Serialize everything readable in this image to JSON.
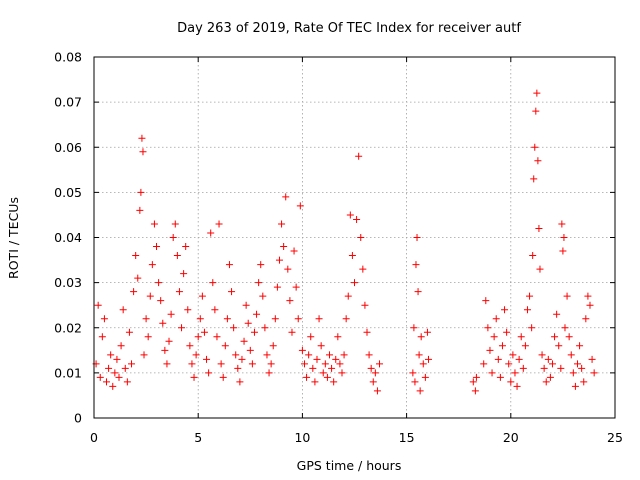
{
  "chart_data": {
    "type": "scatter",
    "title": "Day 263 of 2019, Rate Of TEC Index for receiver autf",
    "xlabel": "GPS time / hours",
    "ylabel": "ROTI / TECUs",
    "xlim": [
      0,
      25
    ],
    "ylim": [
      0,
      0.08
    ],
    "x_ticks": [
      "0",
      "5",
      "10",
      "15",
      "20",
      "25"
    ],
    "y_ticks": [
      "0",
      "0.01",
      "0.02",
      "0.03",
      "0.04",
      "0.05",
      "0.06",
      "0.07",
      "0.08"
    ],
    "grid": true,
    "marker": "plus",
    "color": "#ff0000",
    "points": [
      [
        0.1,
        0.012
      ],
      [
        0.2,
        0.025
      ],
      [
        0.3,
        0.009
      ],
      [
        0.4,
        0.018
      ],
      [
        0.5,
        0.022
      ],
      [
        0.6,
        0.008
      ],
      [
        0.7,
        0.011
      ],
      [
        0.8,
        0.014
      ],
      [
        0.9,
        0.007
      ],
      [
        1.0,
        0.01
      ],
      [
        1.1,
        0.013
      ],
      [
        1.2,
        0.009
      ],
      [
        1.3,
        0.016
      ],
      [
        1.4,
        0.024
      ],
      [
        1.5,
        0.011
      ],
      [
        1.6,
        0.008
      ],
      [
        1.7,
        0.019
      ],
      [
        1.8,
        0.012
      ],
      [
        1.9,
        0.028
      ],
      [
        2.0,
        0.036
      ],
      [
        2.1,
        0.031
      ],
      [
        2.2,
        0.046
      ],
      [
        2.25,
        0.05
      ],
      [
        2.3,
        0.062
      ],
      [
        2.35,
        0.059
      ],
      [
        2.4,
        0.014
      ],
      [
        2.5,
        0.022
      ],
      [
        2.6,
        0.018
      ],
      [
        2.7,
        0.027
      ],
      [
        2.8,
        0.034
      ],
      [
        2.9,
        0.043
      ],
      [
        3.0,
        0.038
      ],
      [
        3.1,
        0.03
      ],
      [
        3.2,
        0.026
      ],
      [
        3.3,
        0.021
      ],
      [
        3.4,
        0.015
      ],
      [
        3.5,
        0.012
      ],
      [
        3.6,
        0.017
      ],
      [
        3.7,
        0.023
      ],
      [
        3.8,
        0.04
      ],
      [
        3.9,
        0.043
      ],
      [
        4.0,
        0.036
      ],
      [
        4.1,
        0.028
      ],
      [
        4.2,
        0.02
      ],
      [
        4.3,
        0.032
      ],
      [
        4.4,
        0.038
      ],
      [
        4.5,
        0.024
      ],
      [
        4.6,
        0.016
      ],
      [
        4.7,
        0.012
      ],
      [
        4.8,
        0.009
      ],
      [
        4.9,
        0.014
      ],
      [
        5.0,
        0.018
      ],
      [
        5.1,
        0.022
      ],
      [
        5.2,
        0.027
      ],
      [
        5.3,
        0.019
      ],
      [
        5.4,
        0.013
      ],
      [
        5.5,
        0.01
      ],
      [
        5.6,
        0.041
      ],
      [
        5.7,
        0.03
      ],
      [
        5.8,
        0.024
      ],
      [
        5.9,
        0.018
      ],
      [
        6.0,
        0.043
      ],
      [
        6.1,
        0.012
      ],
      [
        6.2,
        0.009
      ],
      [
        6.3,
        0.016
      ],
      [
        6.4,
        0.022
      ],
      [
        6.5,
        0.034
      ],
      [
        6.6,
        0.028
      ],
      [
        6.7,
        0.02
      ],
      [
        6.8,
        0.014
      ],
      [
        6.9,
        0.011
      ],
      [
        7.0,
        0.008
      ],
      [
        7.1,
        0.013
      ],
      [
        7.2,
        0.017
      ],
      [
        7.3,
        0.025
      ],
      [
        7.4,
        0.021
      ],
      [
        7.5,
        0.015
      ],
      [
        7.6,
        0.012
      ],
      [
        7.7,
        0.019
      ],
      [
        7.8,
        0.023
      ],
      [
        7.9,
        0.03
      ],
      [
        8.0,
        0.034
      ],
      [
        8.1,
        0.027
      ],
      [
        8.2,
        0.02
      ],
      [
        8.3,
        0.014
      ],
      [
        8.4,
        0.01
      ],
      [
        8.5,
        0.012
      ],
      [
        8.6,
        0.016
      ],
      [
        8.7,
        0.022
      ],
      [
        8.8,
        0.029
      ],
      [
        8.9,
        0.035
      ],
      [
        9.0,
        0.043
      ],
      [
        9.1,
        0.038
      ],
      [
        9.2,
        0.049
      ],
      [
        9.3,
        0.033
      ],
      [
        9.4,
        0.026
      ],
      [
        9.5,
        0.019
      ],
      [
        9.6,
        0.037
      ],
      [
        9.7,
        0.029
      ],
      [
        9.8,
        0.022
      ],
      [
        9.9,
        0.047
      ],
      [
        10.0,
        0.015
      ],
      [
        10.1,
        0.012
      ],
      [
        10.2,
        0.009
      ],
      [
        10.3,
        0.014
      ],
      [
        10.4,
        0.018
      ],
      [
        10.5,
        0.011
      ],
      [
        10.6,
        0.008
      ],
      [
        10.7,
        0.013
      ],
      [
        10.8,
        0.022
      ],
      [
        10.9,
        0.016
      ],
      [
        11.0,
        0.01
      ],
      [
        11.1,
        0.012
      ],
      [
        11.2,
        0.009
      ],
      [
        11.3,
        0.014
      ],
      [
        11.4,
        0.011
      ],
      [
        11.5,
        0.008
      ],
      [
        11.6,
        0.013
      ],
      [
        11.7,
        0.018
      ],
      [
        11.8,
        0.012
      ],
      [
        11.9,
        0.01
      ],
      [
        12.0,
        0.014
      ],
      [
        12.1,
        0.022
      ],
      [
        12.2,
        0.027
      ],
      [
        12.3,
        0.045
      ],
      [
        12.4,
        0.036
      ],
      [
        12.5,
        0.03
      ],
      [
        12.6,
        0.044
      ],
      [
        12.7,
        0.058
      ],
      [
        12.8,
        0.04
      ],
      [
        12.9,
        0.033
      ],
      [
        13.0,
        0.025
      ],
      [
        13.1,
        0.019
      ],
      [
        13.2,
        0.014
      ],
      [
        13.3,
        0.011
      ],
      [
        13.4,
        0.008
      ],
      [
        13.5,
        0.01
      ],
      [
        13.6,
        0.006
      ],
      [
        13.7,
        0.012
      ],
      [
        15.3,
        0.01
      ],
      [
        15.35,
        0.02
      ],
      [
        15.4,
        0.008
      ],
      [
        15.45,
        0.034
      ],
      [
        15.5,
        0.04
      ],
      [
        15.55,
        0.028
      ],
      [
        15.6,
        0.014
      ],
      [
        15.65,
        0.006
      ],
      [
        15.7,
        0.018
      ],
      [
        15.8,
        0.012
      ],
      [
        15.9,
        0.009
      ],
      [
        16.0,
        0.019
      ],
      [
        16.05,
        0.013
      ],
      [
        18.2,
        0.008
      ],
      [
        18.3,
        0.006
      ],
      [
        18.35,
        0.009
      ],
      [
        18.7,
        0.012
      ],
      [
        18.8,
        0.026
      ],
      [
        18.9,
        0.02
      ],
      [
        19.0,
        0.015
      ],
      [
        19.1,
        0.01
      ],
      [
        19.2,
        0.018
      ],
      [
        19.3,
        0.022
      ],
      [
        19.4,
        0.013
      ],
      [
        19.5,
        0.009
      ],
      [
        19.6,
        0.016
      ],
      [
        19.7,
        0.024
      ],
      [
        19.8,
        0.019
      ],
      [
        19.9,
        0.012
      ],
      [
        20.0,
        0.008
      ],
      [
        20.1,
        0.014
      ],
      [
        20.2,
        0.01
      ],
      [
        20.3,
        0.007
      ],
      [
        20.4,
        0.013
      ],
      [
        20.5,
        0.018
      ],
      [
        20.6,
        0.011
      ],
      [
        20.7,
        0.016
      ],
      [
        20.8,
        0.024
      ],
      [
        20.9,
        0.027
      ],
      [
        21.0,
        0.02
      ],
      [
        21.05,
        0.036
      ],
      [
        21.1,
        0.053
      ],
      [
        21.15,
        0.06
      ],
      [
        21.2,
        0.068
      ],
      [
        21.25,
        0.072
      ],
      [
        21.3,
        0.057
      ],
      [
        21.35,
        0.042
      ],
      [
        21.4,
        0.033
      ],
      [
        21.5,
        0.014
      ],
      [
        21.6,
        0.011
      ],
      [
        21.7,
        0.008
      ],
      [
        21.8,
        0.013
      ],
      [
        21.9,
        0.009
      ],
      [
        22.0,
        0.012
      ],
      [
        22.1,
        0.018
      ],
      [
        22.2,
        0.023
      ],
      [
        22.3,
        0.016
      ],
      [
        22.4,
        0.011
      ],
      [
        22.45,
        0.043
      ],
      [
        22.5,
        0.037
      ],
      [
        22.55,
        0.04
      ],
      [
        22.6,
        0.02
      ],
      [
        22.7,
        0.027
      ],
      [
        22.8,
        0.018
      ],
      [
        22.9,
        0.014
      ],
      [
        23.0,
        0.01
      ],
      [
        23.1,
        0.007
      ],
      [
        23.2,
        0.012
      ],
      [
        23.3,
        0.016
      ],
      [
        23.4,
        0.011
      ],
      [
        23.5,
        0.008
      ],
      [
        23.6,
        0.022
      ],
      [
        23.7,
        0.027
      ],
      [
        23.8,
        0.025
      ],
      [
        23.9,
        0.013
      ],
      [
        24.0,
        0.01
      ]
    ]
  }
}
